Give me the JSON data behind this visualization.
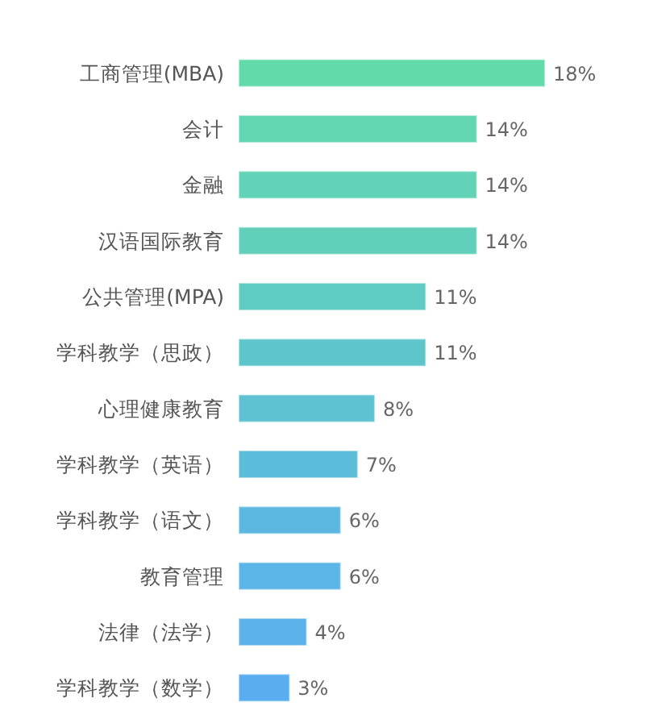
{
  "chart_data": {
    "type": "bar",
    "orientation": "horizontal",
    "categories": [
      "工商管理(MBA)",
      "会计",
      "金融",
      "汉语国际教育",
      "公共管理(MPA)",
      "学科教学（思政）",
      "心理健康教育",
      "学科教学（英语）",
      "学科教学（语文）",
      "教育管理",
      "法律（法学）",
      "学科教学（数学）"
    ],
    "values": [
      18,
      14,
      14,
      14,
      11,
      11,
      8,
      7,
      6,
      6,
      4,
      3
    ],
    "value_labels": [
      "18%",
      "14%",
      "14%",
      "14%",
      "11%",
      "11%",
      "8%",
      "7%",
      "6%",
      "6%",
      "4%",
      "3%"
    ],
    "colors": [
      "#62dbab",
      "#62d5b2",
      "#62d3b6",
      "#62cfbb",
      "#60cbc3",
      "#5ec6cb",
      "#5ec2d3",
      "#5cbddb",
      "#5cb8e1",
      "#5cb5e7",
      "#5cb2eb",
      "#5aaef0"
    ]
  }
}
